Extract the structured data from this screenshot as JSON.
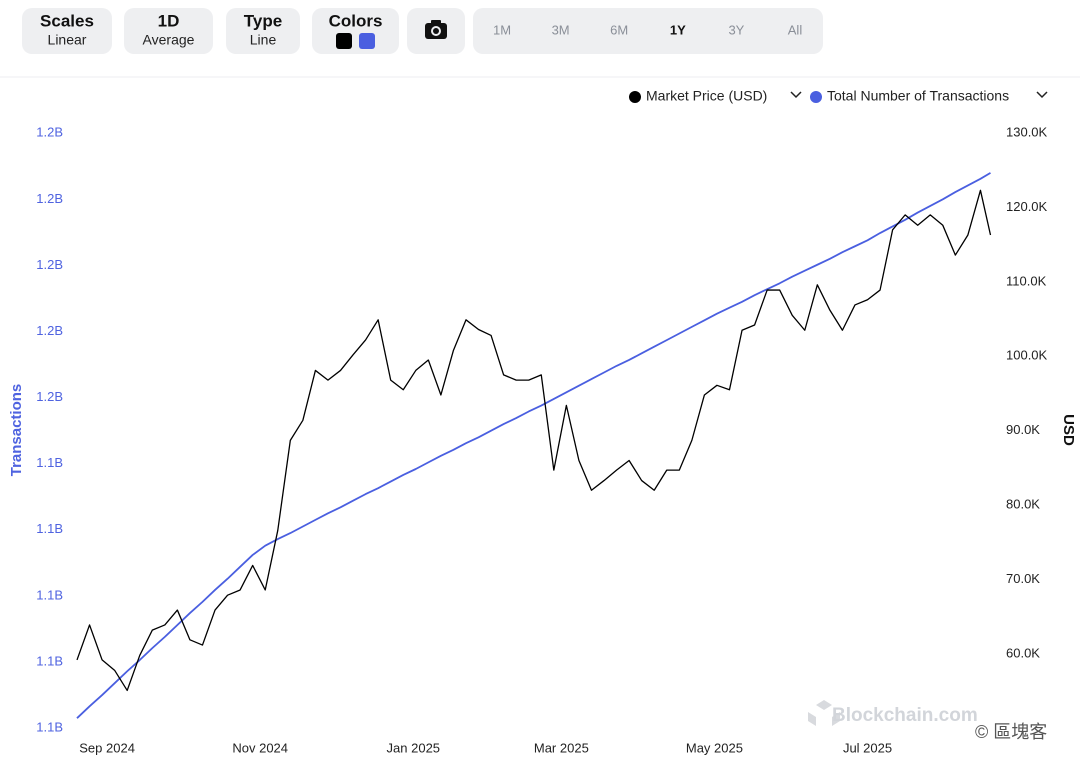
{
  "toolbar": {
    "buttons": [
      {
        "label": "Scales",
        "sublabel": "Linear"
      },
      {
        "label": "1D",
        "sublabel": "Average"
      },
      {
        "label": "Type",
        "sublabel": "Line"
      },
      {
        "label": "Colors"
      }
    ],
    "ranges": [
      "1M",
      "3M",
      "6M",
      "1Y",
      "3Y",
      "All"
    ],
    "active_range": 3
  },
  "watermark": {
    "brand": "Blockchain.com",
    "source": "© 區塊客"
  },
  "chart_data": {
    "type": "line",
    "y_label": "USD",
    "y2_label": "Transactions",
    "legend": "top-right",
    "grid": false,
    "xlim": [
      0,
      365
    ],
    "xticks": [
      {
        "value": 12,
        "label": "Sep 2024"
      },
      {
        "value": 73,
        "label": "Nov 2024"
      },
      {
        "value": 134,
        "label": "Jan 2025"
      },
      {
        "value": 193,
        "label": "Mar 2025"
      },
      {
        "value": 254,
        "label": "May 2025"
      },
      {
        "value": 315,
        "label": "Jul 2025"
      }
    ],
    "ylim": [
      48440,
      131750
    ],
    "yticks": [
      {
        "value": 60000,
        "label": "60.0K"
      },
      {
        "value": 70000,
        "label": "70.0K"
      },
      {
        "value": 80000,
        "label": "80.0K"
      },
      {
        "value": 90000,
        "label": "90.0K"
      },
      {
        "value": 100000,
        "label": "100.0K"
      },
      {
        "value": 110000,
        "label": "110.0K"
      },
      {
        "value": 120000,
        "label": "120.0K"
      },
      {
        "value": 130000,
        "label": "130.0K"
      }
    ],
    "y2lim": [
      1098200000,
      1192000000
    ],
    "y2ticks": [
      {
        "value": 1100000000,
        "label": "1.1B"
      },
      {
        "value": 1110000000,
        "label": "1.1B"
      },
      {
        "value": 1120000000,
        "label": "1.1B"
      },
      {
        "value": 1130000000,
        "label": "1.1B"
      },
      {
        "value": 1140000000,
        "label": "1.1B"
      },
      {
        "value": 1150000000,
        "label": "1.2B"
      },
      {
        "value": 1160000000,
        "label": "1.2B"
      },
      {
        "value": 1170000000,
        "label": "1.2B"
      },
      {
        "value": 1180000000,
        "label": "1.2B"
      },
      {
        "value": 1190000000,
        "label": "1.2B"
      }
    ],
    "x": [
      0,
      5,
      10,
      15,
      20,
      25,
      30,
      35,
      40,
      45,
      50,
      55,
      60,
      65,
      70,
      75,
      80,
      85,
      90,
      95,
      100,
      105,
      110,
      115,
      120,
      125,
      130,
      135,
      140,
      145,
      150,
      155,
      160,
      165,
      170,
      175,
      180,
      185,
      190,
      195,
      200,
      205,
      210,
      215,
      220,
      225,
      230,
      235,
      240,
      245,
      250,
      255,
      260,
      265,
      270,
      275,
      280,
      285,
      290,
      295,
      300,
      305,
      310,
      315,
      320,
      325,
      330,
      335,
      340,
      345,
      350,
      355,
      360,
      364
    ],
    "series": [
      {
        "name": "Market Price (USD)",
        "color": "#000000",
        "values": [
          59200,
          63900,
          59200,
          57800,
          55100,
          59800,
          63200,
          63900,
          65900,
          61900,
          61200,
          65900,
          67900,
          68600,
          71900,
          68600,
          76600,
          88700,
          91400,
          98100,
          96800,
          98100,
          100200,
          102200,
          104900,
          96800,
          95500,
          98100,
          99500,
          94800,
          100800,
          104900,
          103600,
          102800,
          97500,
          96800,
          96800,
          97500,
          84700,
          93400,
          86000,
          82000,
          83300,
          84700,
          86000,
          83300,
          82000,
          84700,
          84700,
          88700,
          94800,
          96100,
          95500,
          103500,
          104200,
          108900,
          108900,
          105500,
          103500,
          109600,
          106200,
          103500,
          106900,
          107600,
          108900,
          117000,
          119000,
          117600,
          119000,
          117600,
          113600,
          116300,
          122300,
          116300
        ]
      },
      {
        "name": "Total Number of Transactions",
        "color": "#4a5fe0",
        "axis": "y2",
        "values": [
          1101500000,
          1103300000,
          1105000000,
          1106800000,
          1108600000,
          1110300000,
          1112100000,
          1113800000,
          1115600000,
          1117400000,
          1119100000,
          1120900000,
          1122600000,
          1124400000,
          1126200000,
          1127600000,
          1128600000,
          1129500000,
          1130500000,
          1131500000,
          1132500000,
          1133400000,
          1134400000,
          1135400000,
          1136300000,
          1137300000,
          1138300000,
          1139200000,
          1140200000,
          1141200000,
          1142100000,
          1143100000,
          1144000000,
          1145000000,
          1146000000,
          1146900000,
          1147900000,
          1148800000,
          1149800000,
          1150800000,
          1151800000,
          1152800000,
          1153800000,
          1154800000,
          1155700000,
          1156700000,
          1157700000,
          1158700000,
          1159700000,
          1160700000,
          1161700000,
          1162700000,
          1163600000,
          1164500000,
          1165500000,
          1166400000,
          1167300000,
          1168300000,
          1169200000,
          1170100000,
          1171000000,
          1172000000,
          1172900000,
          1173800000,
          1174900000,
          1175900000,
          1176900000,
          1178000000,
          1179000000,
          1180000000,
          1181100000,
          1182100000,
          1183100000,
          1184000000
        ]
      }
    ]
  }
}
